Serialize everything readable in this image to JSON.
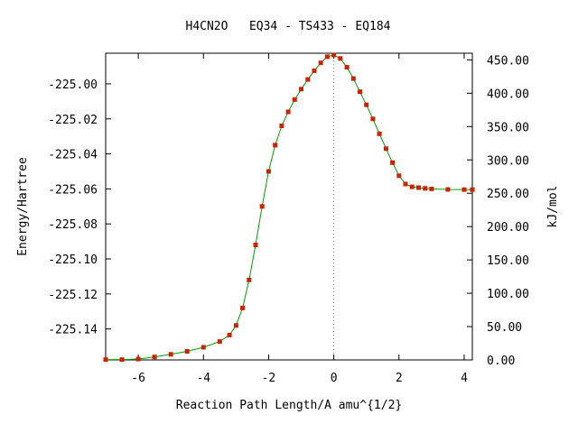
{
  "chart_data": {
    "type": "line",
    "title": "H4CN2O   EQ34 - TS433 - EQ184",
    "xlabel": "Reaction Path Length/A amu^{1/2}",
    "ylabel_left": "Energy/Hartree",
    "ylabel_right": "kJ/mol",
    "xlim": [
      -7.0,
      4.25
    ],
    "ylim_left": [
      -225.1577,
      -224.9825
    ],
    "ylim_right": [
      0.0,
      460.0
    ],
    "x_ticks": [
      -6,
      -4,
      -2,
      0,
      2,
      4
    ],
    "x_tick_labels": [
      "-6",
      "-4",
      "-2",
      "0",
      "2",
      "4"
    ],
    "y_left_ticks": [
      -225.0,
      -225.02,
      -225.04,
      -225.06,
      -225.08,
      -225.1,
      -225.12,
      -225.14
    ],
    "y_left_tick_labels": [
      "-225.00",
      "-225.02",
      "-225.04",
      "-225.06",
      "-225.08",
      "-225.10",
      "-225.12",
      "-225.14"
    ],
    "y_right_ticks": [
      0,
      50,
      100,
      150,
      200,
      250,
      300,
      350,
      400,
      450
    ],
    "y_right_tick_labels": [
      "0.00",
      "50.00",
      "100.00",
      "150.00",
      "200.00",
      "250.00",
      "300.00",
      "350.00",
      "400.00",
      "450.00"
    ],
    "ts_marker_x": 0.0,
    "grid": false,
    "series": [
      {
        "line_color": "#00a000",
        "marker_color": "#cc2200",
        "x": [
          -7.0,
          -6.5,
          -6.0,
          -5.5,
          -5.0,
          -4.5,
          -4.0,
          -3.5,
          -3.2,
          -3.0,
          -2.8,
          -2.6,
          -2.4,
          -2.2,
          -2.0,
          -1.8,
          -1.6,
          -1.4,
          -1.2,
          -1.0,
          -0.8,
          -0.6,
          -0.4,
          -0.2,
          0.0,
          0.2,
          0.4,
          0.6,
          0.8,
          1.0,
          1.2,
          1.4,
          1.6,
          1.8,
          2.0,
          2.2,
          2.4,
          2.6,
          2.8,
          3.0,
          3.5,
          4.0,
          4.25
        ],
        "y": [
          -225.1575,
          -225.1575,
          -225.1572,
          -225.156,
          -225.1545,
          -225.1528,
          -225.1505,
          -225.1472,
          -225.1435,
          -225.138,
          -225.128,
          -225.112,
          -225.092,
          -225.07,
          -225.05,
          -225.035,
          -225.024,
          -225.016,
          -225.009,
          -225.003,
          -224.9975,
          -224.9925,
          -224.988,
          -224.9845,
          -224.9835,
          -224.9855,
          -224.9905,
          -224.997,
          -225.0045,
          -225.012,
          -225.02,
          -225.0285,
          -225.037,
          -225.045,
          -225.0525,
          -225.0572,
          -225.0588,
          -225.0593,
          -225.0597,
          -225.06,
          -225.0603,
          -225.0604,
          -225.0604
        ]
      }
    ]
  }
}
